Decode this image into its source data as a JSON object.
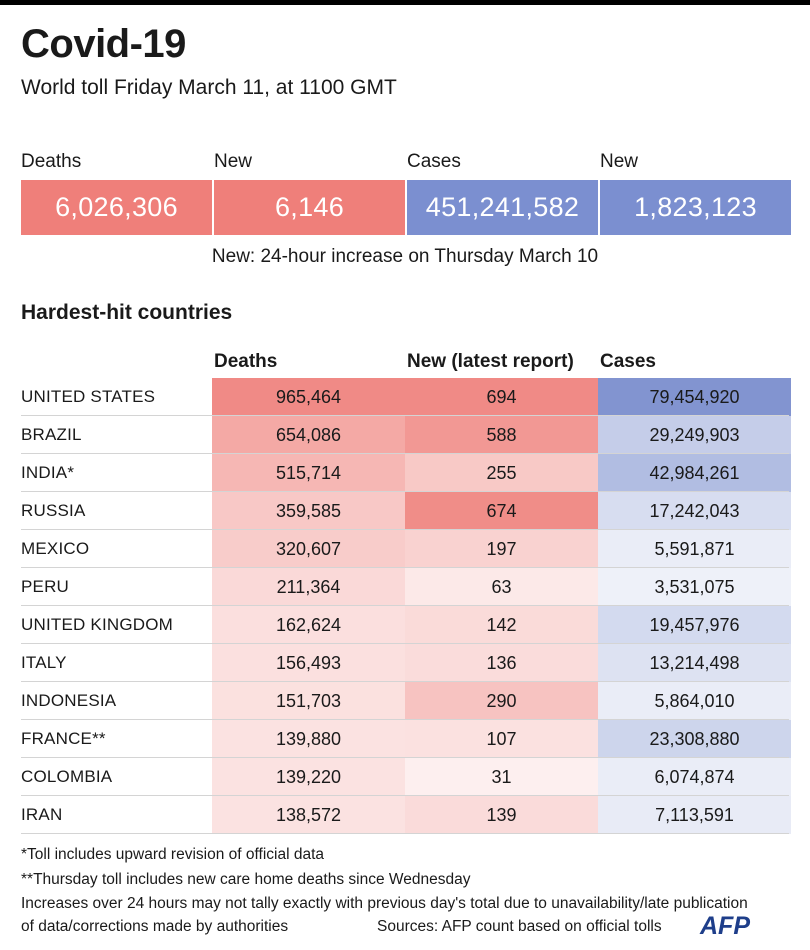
{
  "header": {
    "title": "Covid-19",
    "subtitle": "World toll Friday March 11, at 1100 GMT"
  },
  "summary": {
    "items": [
      {
        "label": "Deaths",
        "value": "6,026,306",
        "color": "#ef7f7a"
      },
      {
        "label": "New",
        "value": "6,146",
        "color": "#ef7f7a"
      },
      {
        "label": "Cases",
        "value": "451,241,582",
        "color": "#7b8fd0"
      },
      {
        "label": "New",
        "value": "1,823,123",
        "color": "#7b8fd0"
      }
    ],
    "note": "New: 24-hour increase on Thursday March 10"
  },
  "section_title": "Hardest-hit countries",
  "colors": {
    "deaths_scale": "#ee7d78",
    "cases_scale": "#7488cb"
  },
  "chart_data": {
    "type": "table",
    "columns": [
      "Deaths",
      "New (latest report)",
      "Cases"
    ],
    "rows": [
      {
        "country": "UNITED STATES",
        "deaths": 965464,
        "new": 694,
        "cases": 79454920
      },
      {
        "country": "BRAZIL",
        "deaths": 654086,
        "new": 588,
        "cases": 29249903
      },
      {
        "country": "INDIA*",
        "deaths": 515714,
        "new": 255,
        "cases": 42984261
      },
      {
        "country": "RUSSIA",
        "deaths": 359585,
        "new": 674,
        "cases": 17242043
      },
      {
        "country": "MEXICO",
        "deaths": 320607,
        "new": 197,
        "cases": 5591871
      },
      {
        "country": "PERU",
        "deaths": 211364,
        "new": 63,
        "cases": 3531075
      },
      {
        "country": "UNITED KINGDOM",
        "deaths": 162624,
        "new": 142,
        "cases": 19457976
      },
      {
        "country": "ITALY",
        "deaths": 156493,
        "new": 136,
        "cases": 13214498
      },
      {
        "country": "INDONESIA",
        "deaths": 151703,
        "new": 290,
        "cases": 5864010
      },
      {
        "country": "FRANCE**",
        "deaths": 139880,
        "new": 107,
        "cases": 23308880
      },
      {
        "country": "COLOMBIA",
        "deaths": 139220,
        "new": 31,
        "cases": 6074874
      },
      {
        "country": "IRAN",
        "deaths": 138572,
        "new": 139,
        "cases": 7113591
      }
    ]
  },
  "footnotes": [
    "*Toll includes upward revision of official data",
    "**Thursday toll includes new care home deaths since Wednesday",
    "Increases over 24 hours may not tally exactly with previous day's total due to unavailability/late publication",
    "of data/corrections made by authorities"
  ],
  "sources": "Sources: AFP count based on official tolls",
  "logo_text": "AFP"
}
